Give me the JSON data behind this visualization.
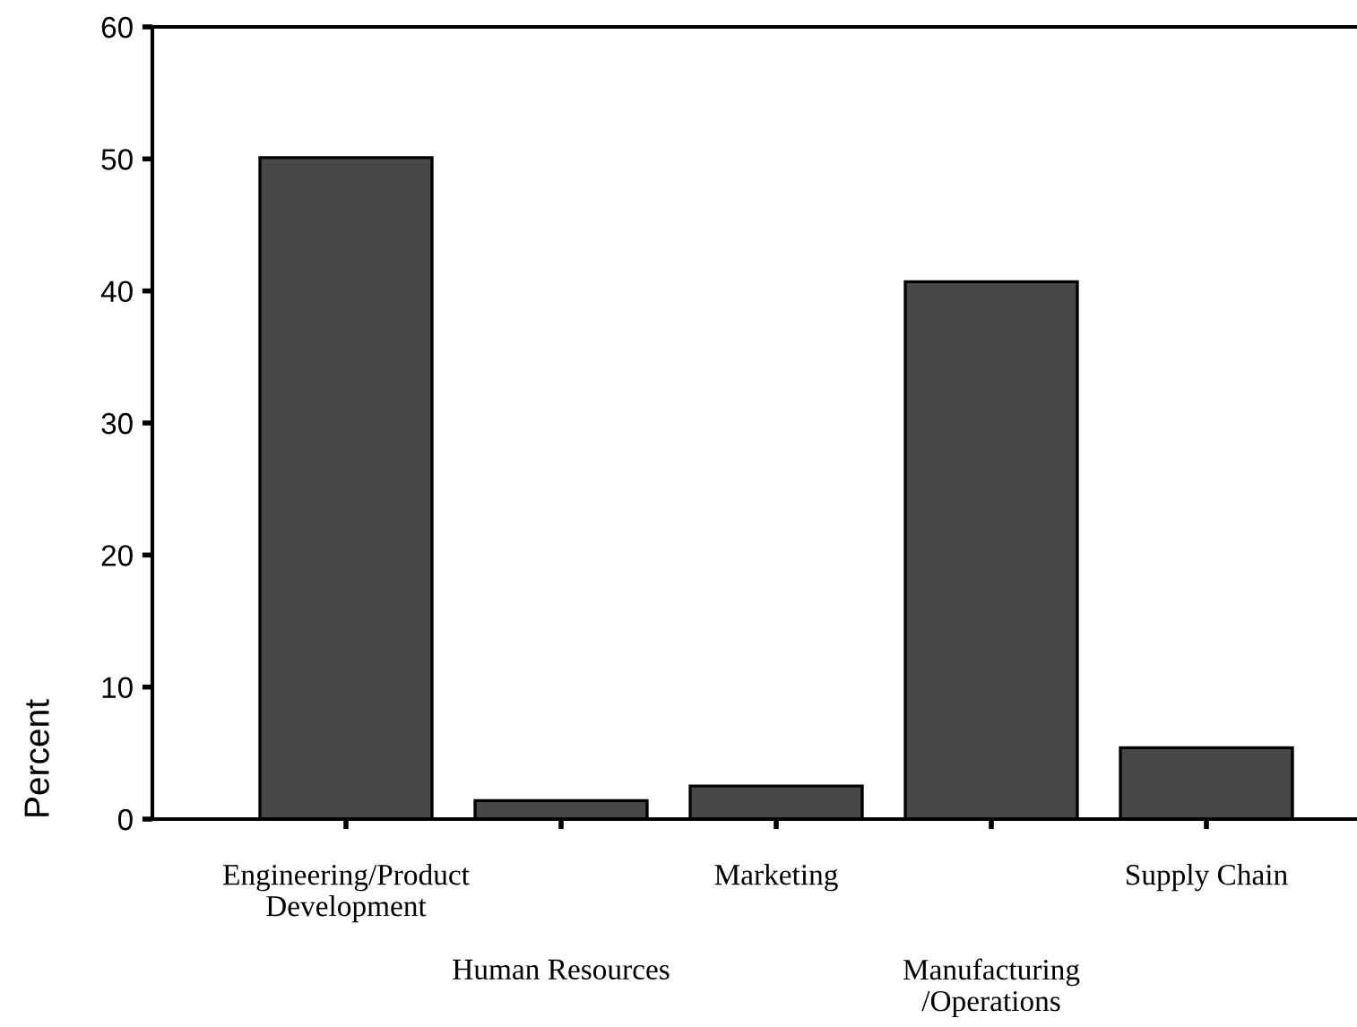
{
  "chart_data": {
    "type": "bar",
    "ylabel": "Percent",
    "categories": [
      "Engineering/Product\nDevelopment",
      "Human Resources",
      "Marketing",
      "Manufacturing\n/Operations",
      "Supply Chain"
    ],
    "values": [
      50.1,
      1.4,
      2.5,
      40.7,
      5.4
    ],
    "color": "#484848",
    "ylim": [
      0,
      60
    ],
    "yticks": [
      0,
      10,
      20,
      30,
      40,
      50,
      60
    ],
    "grid": false
  }
}
